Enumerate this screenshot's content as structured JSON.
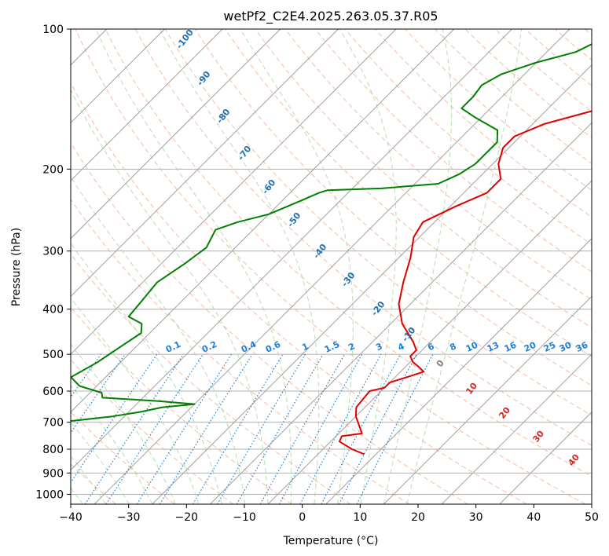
{
  "chart_data": {
    "type": "line",
    "title": "wetPf2_C2E4.2025.263.05.37.R05",
    "xlabel": "Temperature (°C)",
    "ylabel": "Pressure (hPa)",
    "xlim": [
      -40,
      50
    ],
    "ylim": [
      1050,
      100
    ],
    "y_scale": "log",
    "grid": true,
    "x_ticks": [
      "−40",
      "−30",
      "−20",
      "−10",
      "0",
      "10",
      "20",
      "30",
      "40",
      "50"
    ],
    "x_tick_values": [
      -40,
      -30,
      -20,
      -10,
      0,
      10,
      20,
      30,
      40,
      50
    ],
    "y_ticks": [
      "100",
      "200",
      "300",
      "400",
      "500",
      "600",
      "700",
      "800",
      "900",
      "1000"
    ],
    "y_tick_values": [
      100,
      200,
      300,
      400,
      500,
      600,
      700,
      800,
      900,
      1000
    ],
    "series": [
      {
        "color": "#e00000",
        "points": [
          [
            28,
            820
          ],
          [
            25,
            800
          ],
          [
            21.5,
            770
          ],
          [
            21,
            750
          ],
          [
            24,
            740
          ],
          [
            20,
            680
          ],
          [
            18.5,
            650
          ],
          [
            18,
            600
          ],
          [
            20,
            590
          ],
          [
            20,
            575
          ],
          [
            22,
            560
          ],
          [
            24,
            545
          ],
          [
            22,
            530
          ],
          [
            20.5,
            520
          ],
          [
            19,
            505
          ],
          [
            19,
            490
          ],
          [
            17,
            470
          ],
          [
            12,
            430
          ],
          [
            8,
            390
          ],
          [
            5,
            350
          ],
          [
            2,
            310
          ],
          [
            -1,
            280
          ],
          [
            -2,
            260
          ],
          [
            1,
            240
          ],
          [
            4,
            225
          ],
          [
            4,
            210
          ],
          [
            1,
            195
          ],
          [
            -1,
            180
          ],
          [
            -1,
            170
          ],
          [
            2,
            160
          ],
          [
            8,
            150
          ],
          [
            12,
            140
          ],
          [
            14,
            135
          ],
          [
            14,
            125
          ],
          [
            16,
            115
          ],
          [
            18,
            108
          ],
          [
            15,
            102
          ],
          [
            14,
            100
          ]
        ]
      },
      {
        "color": "#008000",
        "points": [
          [
            -40,
            800
          ],
          [
            -38,
            780
          ],
          [
            -40,
            760
          ],
          [
            -40,
            700
          ],
          [
            -28,
            695
          ],
          [
            -22,
            680
          ],
          [
            -18,
            665
          ],
          [
            -15,
            650
          ],
          [
            -10,
            640
          ],
          [
            -17,
            630
          ],
          [
            -27,
            620
          ],
          [
            -28,
            605
          ],
          [
            -33,
            585
          ],
          [
            -36,
            560
          ],
          [
            -35,
            540
          ],
          [
            -34,
            520
          ],
          [
            -33,
            490
          ],
          [
            -31.5,
            450
          ],
          [
            -33,
            430
          ],
          [
            -36.5,
            415
          ],
          [
            -37,
            380
          ],
          [
            -37.5,
            350
          ],
          [
            -36,
            320
          ],
          [
            -35,
            295
          ],
          [
            -36.5,
            270
          ],
          [
            -34,
            260
          ],
          [
            -30,
            250
          ],
          [
            -27,
            235
          ],
          [
            -25,
            225
          ],
          [
            -24,
            222
          ],
          [
            -15,
            220
          ],
          [
            -6,
            215
          ],
          [
            -4,
            205
          ],
          [
            -3,
            195
          ],
          [
            -3,
            175
          ],
          [
            -5,
            165
          ],
          [
            -11,
            155
          ],
          [
            -15,
            148
          ],
          [
            -15,
            140
          ],
          [
            -15.5,
            132
          ],
          [
            -14,
            125
          ],
          [
            -10,
            118
          ],
          [
            -5,
            112
          ],
          [
            -3,
            106
          ],
          [
            -2,
            100
          ]
        ]
      }
    ],
    "dry_adiabat_labels": [
      "-100",
      "-90",
      "-80",
      "-70",
      "-60",
      "-50",
      "-40",
      "-30",
      "-20",
      "-10",
      "0",
      "10",
      "20",
      "30",
      "40"
    ],
    "mixing_ratio_labels": [
      "0.1",
      "0.2",
      "0.4",
      "0.6",
      "1",
      "1.5",
      "2",
      "3",
      "4",
      "6",
      "8",
      "10",
      "13",
      "16",
      "20",
      "25",
      "30",
      "36"
    ],
    "colors": {
      "temperature": "#e00000",
      "dewpoint": "#008000",
      "isotherm": "#a0a0a0",
      "grid": "#b0b0b0",
      "dry_adiabat": "#f4a582",
      "moist_adiabat": "#a6d4a0",
      "mixing_ratio": "#1f7fd6",
      "adiabat_label_blue": "#1f6fb4",
      "adiabat_label_red": "#d62728",
      "adiabat_label_gray": "#808080"
    }
  }
}
